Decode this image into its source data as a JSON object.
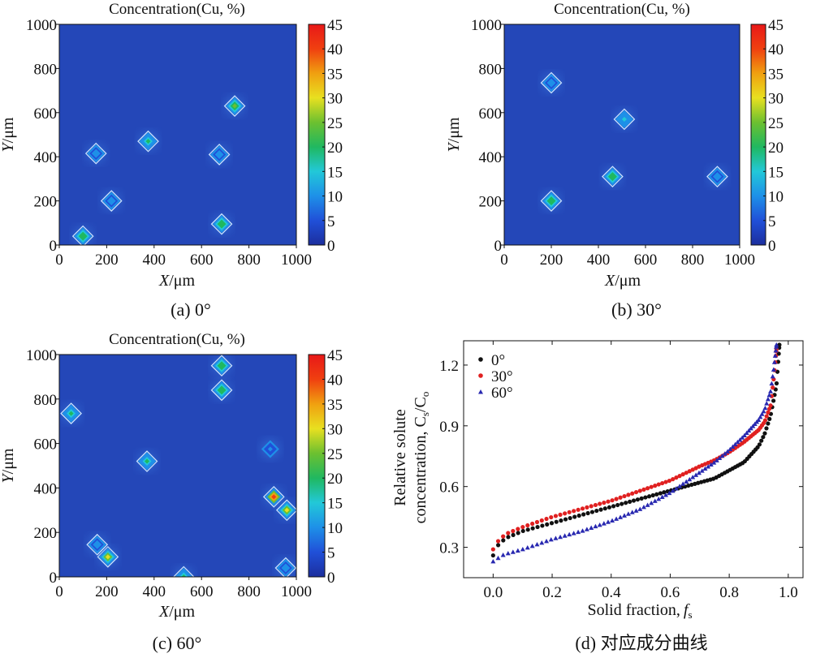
{
  "figure": {
    "panels": [
      {
        "title": "Concentration(Cu, %)",
        "caption": "(a) 0°",
        "xlabel_var": "X",
        "xlabel_unit": "/μm",
        "ylabel_var": "Y",
        "ylabel_unit": "/μm"
      },
      {
        "title": "Concentration(Cu, %)",
        "caption": "(b) 30°",
        "xlabel_var": "X",
        "xlabel_unit": "/μm",
        "ylabel_var": "Y",
        "ylabel_unit": "/μm"
      },
      {
        "title": "Concentration(Cu, %)",
        "caption": "(c) 60°",
        "xlabel_var": "X",
        "xlabel_unit": "/μm",
        "ylabel_var": "Y",
        "ylabel_unit": "/μm"
      }
    ],
    "curve_caption": "(d) 对应成分曲线",
    "colors": {
      "background_map": "#2447b8",
      "colormap": [
        "#1c2e9e",
        "#2050d8",
        "#1e90e8",
        "#22c8d8",
        "#20b860",
        "#6cc030",
        "#e8e020",
        "#f0a010",
        "#f04010",
        "#e81818"
      ],
      "series": [
        "#111111",
        "#e02020",
        "#2828b0"
      ]
    }
  },
  "chart_data": [
    {
      "type": "heatmap",
      "title": "Concentration(Cu, %)",
      "xlabel": "X/μm",
      "ylabel": "Y/μm",
      "xlim": [
        0,
        1000
      ],
      "ylim": [
        0,
        1000
      ],
      "xticks": [
        "0",
        "200",
        "400",
        "600",
        "800",
        "1000"
      ],
      "yticks": [
        "0",
        "200",
        "400",
        "600",
        "800",
        "1000"
      ],
      "colorbar": {
        "range": [
          0,
          45
        ],
        "ticks": [
          "0",
          "5",
          "10",
          "15",
          "20",
          "25",
          "30",
          "35",
          "40",
          "45"
        ]
      },
      "hotspots": [
        {
          "x": 100,
          "y": 40,
          "value": 22
        },
        {
          "x": 375,
          "y": 470,
          "value": 20
        },
        {
          "x": 685,
          "y": 95,
          "value": 22
        },
        {
          "x": 740,
          "y": 630,
          "value": 25
        },
        {
          "x": 220,
          "y": 200,
          "value": 12
        },
        {
          "x": 155,
          "y": 415,
          "value": 10
        },
        {
          "x": 675,
          "y": 410,
          "value": 10
        }
      ]
    },
    {
      "type": "heatmap",
      "title": "Concentration(Cu, %)",
      "xlabel": "X/μm",
      "ylabel": "Y/μm",
      "xlim": [
        0,
        1000
      ],
      "ylim": [
        0,
        1000
      ],
      "xticks": [
        "0",
        "200",
        "400",
        "600",
        "800",
        "1000"
      ],
      "yticks": [
        "0",
        "200",
        "400",
        "600",
        "800",
        "1000"
      ],
      "colorbar": {
        "range": [
          0,
          45
        ],
        "ticks": [
          "0",
          "5",
          "10",
          "15",
          "20",
          "25",
          "30",
          "35",
          "40",
          "45"
        ]
      },
      "hotspots": [
        {
          "x": 200,
          "y": 200,
          "value": 22
        },
        {
          "x": 460,
          "y": 310,
          "value": 22
        },
        {
          "x": 510,
          "y": 570,
          "value": 14
        },
        {
          "x": 200,
          "y": 735,
          "value": 12
        },
        {
          "x": 905,
          "y": 310,
          "value": 10
        }
      ]
    },
    {
      "type": "heatmap",
      "title": "Concentration(Cu, %)",
      "xlabel": "X/μm",
      "ylabel": "Y/μm",
      "xlim": [
        0,
        1000
      ],
      "ylim": [
        0,
        1000
      ],
      "xticks": [
        "0",
        "200",
        "400",
        "600",
        "800",
        "1000"
      ],
      "yticks": [
        "0",
        "200",
        "400",
        "600",
        "800",
        "1000"
      ],
      "colorbar": {
        "range": [
          0,
          45
        ],
        "ticks": [
          "0",
          "5",
          "10",
          "15",
          "20",
          "25",
          "30",
          "35",
          "40",
          "45"
        ]
      },
      "hotspots": [
        {
          "x": 50,
          "y": 735,
          "value": 20
        },
        {
          "x": 370,
          "y": 520,
          "value": 20
        },
        {
          "x": 685,
          "y": 950,
          "value": 22
        },
        {
          "x": 685,
          "y": 840,
          "value": 22
        },
        {
          "x": 205,
          "y": 90,
          "value": 28
        },
        {
          "x": 525,
          "y": 0,
          "value": 20
        },
        {
          "x": 905,
          "y": 360,
          "value": 42
        },
        {
          "x": 960,
          "y": 300,
          "value": 28
        },
        {
          "x": 955,
          "y": 40,
          "value": 12
        },
        {
          "x": 160,
          "y": 145,
          "value": 10
        },
        {
          "x": 890,
          "y": 575,
          "value": 8
        }
      ]
    },
    {
      "type": "scatter",
      "xlabel_main": "Solid fraction,",
      "xlabel_var": "f",
      "xlabel_sub": "s",
      "ylabel_line1": "Relative solute",
      "ylabel_line2_main": "concentration, C",
      "ylabel_line2_sub1": "s",
      "ylabel_line2_mid": "/C",
      "ylabel_line2_sub2": "o",
      "xlim": [
        -0.1,
        1.05
      ],
      "ylim": [
        0.15,
        1.32
      ],
      "xticks": [
        "0.0",
        "0.2",
        "0.4",
        "0.6",
        "0.8",
        "1.0"
      ],
      "yticks": [
        "0.3",
        "0.6",
        "0.9",
        "1.2"
      ],
      "legend_position": "top-left",
      "series": [
        {
          "name": "0°",
          "marker": "circle",
          "color": "#111111",
          "x": [
            0,
            0.01,
            0.03,
            0.05,
            0.1,
            0.2,
            0.3,
            0.4,
            0.5,
            0.6,
            0.7,
            0.75,
            0.8,
            0.85,
            0.9,
            0.92,
            0.94,
            0.96,
            0.97
          ],
          "y": [
            0.26,
            0.3,
            0.33,
            0.35,
            0.38,
            0.42,
            0.46,
            0.5,
            0.54,
            0.58,
            0.62,
            0.64,
            0.68,
            0.72,
            0.8,
            0.86,
            0.95,
            1.1,
            1.3
          ]
        },
        {
          "name": "30°",
          "marker": "circle",
          "color": "#e02020",
          "x": [
            0,
            0.01,
            0.03,
            0.05,
            0.1,
            0.2,
            0.3,
            0.4,
            0.5,
            0.6,
            0.7,
            0.75,
            0.8,
            0.85,
            0.9,
            0.92,
            0.94,
            0.95,
            0.96
          ],
          "y": [
            0.29,
            0.32,
            0.35,
            0.37,
            0.4,
            0.45,
            0.49,
            0.53,
            0.58,
            0.63,
            0.7,
            0.73,
            0.77,
            0.82,
            0.88,
            0.92,
            1.0,
            1.12,
            1.28
          ]
        },
        {
          "name": "60°",
          "marker": "triangle",
          "color": "#2828b0",
          "x": [
            0,
            0.01,
            0.03,
            0.05,
            0.1,
            0.2,
            0.3,
            0.4,
            0.5,
            0.6,
            0.7,
            0.75,
            0.8,
            0.85,
            0.9,
            0.92,
            0.94,
            0.95,
            0.96
          ],
          "y": [
            0.23,
            0.24,
            0.26,
            0.27,
            0.29,
            0.34,
            0.38,
            0.43,
            0.49,
            0.57,
            0.67,
            0.72,
            0.78,
            0.85,
            0.93,
            0.98,
            1.07,
            1.17,
            1.3
          ]
        }
      ]
    }
  ]
}
